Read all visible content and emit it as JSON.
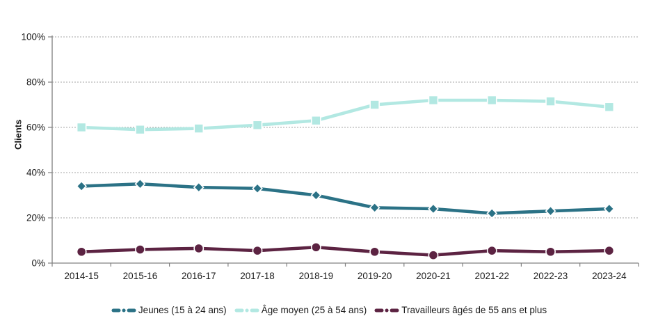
{
  "chart_data": {
    "type": "line",
    "title": "",
    "xlabel": "",
    "ylabel": "Clients",
    "ylim": [
      0,
      100
    ],
    "grid": "horizontal-dashed",
    "legend_position": "bottom-center",
    "axis_color": "#808080",
    "gridline_color": "#A6A6A6",
    "text_color": "#1a1a1a",
    "ytick_labels": [
      "0%",
      "20%",
      "40%",
      "60%",
      "80%",
      "100%"
    ],
    "yticks": [
      0,
      20,
      40,
      60,
      80,
      100
    ],
    "categories": [
      "2014-15",
      "2015-16",
      "2016-17",
      "2017-18",
      "2018-19",
      "2019-20",
      "2020-21",
      "2021-22",
      "2022-23",
      "2023-24"
    ],
    "series": [
      {
        "name": "Jeunes (15 à 24 ans)",
        "color": "#2B7286",
        "marker": "diamond",
        "values": [
          34,
          35,
          33.5,
          33,
          30,
          24.5,
          24,
          22,
          23,
          24
        ]
      },
      {
        "name": "Âge moyen (25 à 54 ans)",
        "color": "#B2E8E2",
        "marker": "square",
        "values": [
          60,
          59,
          59.5,
          61,
          63,
          70,
          72,
          72,
          71.5,
          69
        ]
      },
      {
        "name": "Travailleurs âgés de 55 ans et plus",
        "color": "#5C2342",
        "marker": "circle",
        "values": [
          5,
          6,
          6.5,
          5.5,
          7,
          5,
          3.5,
          5.5,
          5,
          5.5
        ]
      }
    ]
  }
}
